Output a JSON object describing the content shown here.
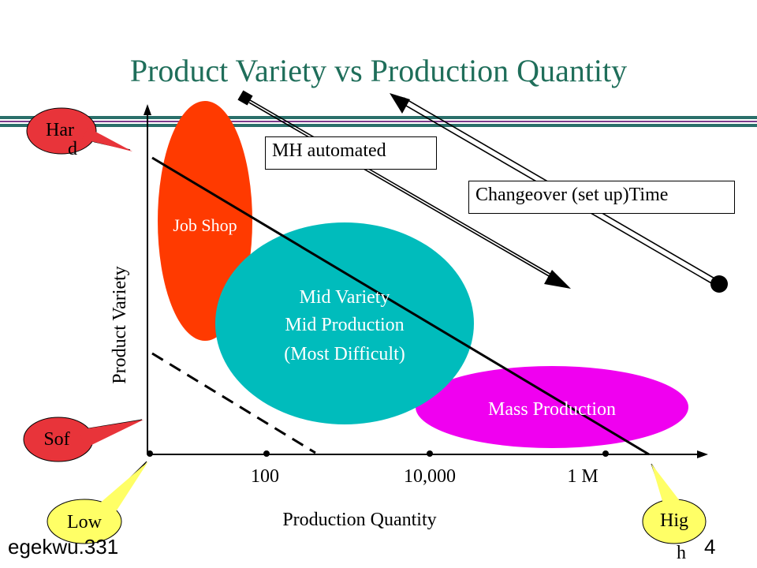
{
  "slide": {
    "title": "Product Variety vs Production Quantity",
    "footer_left": "egekwu.331",
    "page_number": "4"
  },
  "diagram": {
    "y_axis_label": "Product  Variety",
    "x_axis_label": "Production Quantity",
    "x_ticks": [
      "100",
      "10,000",
      "1 M"
    ],
    "regions": {
      "job_shop": "Job Shop",
      "mid_line1": "Mid Variety",
      "mid_line2": "Mid Production",
      "mid_line3": "(Most Difficult)",
      "mass": "Mass Production"
    },
    "arrow_labels": {
      "mh": "MH automated",
      "changeover": "Changeover (set up)Time"
    },
    "callouts": {
      "hard_line1": "Har",
      "hard_line2": "d",
      "soft": "Sof",
      "low": "Low",
      "high_line1": "Hig",
      "high_line2": "h"
    },
    "colors": {
      "title": "#1f6e5a",
      "job_shop": "#ff3a00",
      "mid": "#00bcbc",
      "mass": "#f000f0",
      "callout_red": "#e8343a",
      "callout_yellow": "#ffff66",
      "band_teal": "#2a6f6a",
      "band_purple": "#7b3a8a"
    }
  }
}
